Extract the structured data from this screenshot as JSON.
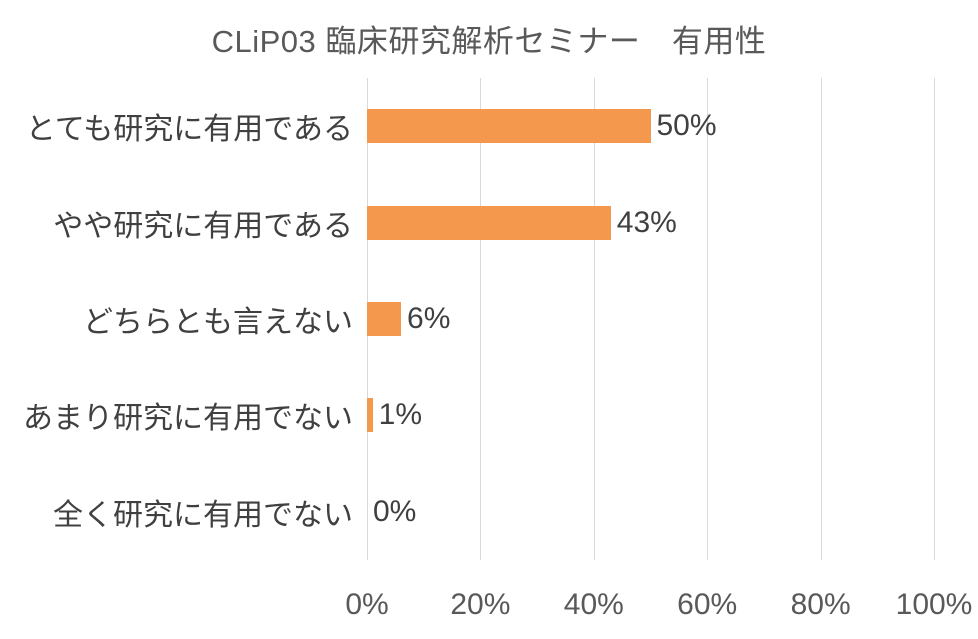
{
  "title": "CLiP03 臨床研究解析セミナー　有用性",
  "chart_data": {
    "type": "bar",
    "orientation": "horizontal",
    "title": "CLiP03 臨床研究解析セミナー　有用性",
    "categories": [
      "とても研究に有用である",
      "やや研究に有用である",
      "どちらとも言えない",
      "あまり研究に有用でない",
      "全く研究に有用でない"
    ],
    "values": [
      50,
      43,
      6,
      1,
      0
    ],
    "data_labels": [
      "50%",
      "43%",
      "6%",
      "1%",
      "0%"
    ],
    "x_ticks": [
      "0%",
      "20%",
      "40%",
      "60%",
      "80%",
      "100%"
    ],
    "x_tick_values": [
      0,
      20,
      40,
      60,
      80,
      100
    ],
    "xlim": [
      0,
      100
    ],
    "xlabel": "",
    "ylabel": "",
    "legend": "none",
    "grid": "vertical",
    "data_label_position": "outside-end",
    "colors": {
      "bar": "#f3984d",
      "gridline": "#d9d9d9",
      "title_text": "#595959",
      "category_text": "#404040",
      "data_label_text": "#404040",
      "axis_tick_text": "#595959",
      "background": "#ffffff"
    }
  }
}
